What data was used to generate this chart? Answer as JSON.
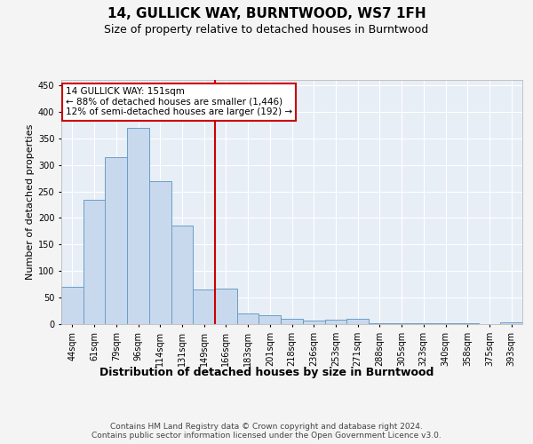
{
  "title": "14, GULLICK WAY, BURNTWOOD, WS7 1FH",
  "subtitle": "Size of property relative to detached houses in Burntwood",
  "xlabel": "Distribution of detached houses by size in Burntwood",
  "ylabel": "Number of detached properties",
  "categories": [
    "44sqm",
    "61sqm",
    "79sqm",
    "96sqm",
    "114sqm",
    "131sqm",
    "149sqm",
    "166sqm",
    "183sqm",
    "201sqm",
    "218sqm",
    "236sqm",
    "253sqm",
    "271sqm",
    "288sqm",
    "305sqm",
    "323sqm",
    "340sqm",
    "358sqm",
    "375sqm",
    "393sqm"
  ],
  "values": [
    70,
    235,
    315,
    370,
    270,
    185,
    65,
    67,
    20,
    17,
    10,
    6,
    8,
    10,
    2,
    2,
    2,
    2,
    1,
    0,
    3
  ],
  "bar_color": "#c9d9ed",
  "bar_edge_color": "#6a9ec5",
  "vline_x_index": 6.5,
  "vline_color": "#cc0000",
  "annotation_text": "14 GULLICK WAY: 151sqm\n← 88% of detached houses are smaller (1,446)\n12% of semi-detached houses are larger (192) →",
  "annotation_box_color": "#ffffff",
  "annotation_box_edge": "#cc0000",
  "ylim": [
    0,
    460
  ],
  "yticks": [
    0,
    50,
    100,
    150,
    200,
    250,
    300,
    350,
    400,
    450
  ],
  "footer": "Contains HM Land Registry data © Crown copyright and database right 2024.\nContains public sector information licensed under the Open Government Licence v3.0.",
  "fig_bg_color": "#f4f4f4",
  "bg_color": "#e8eef6",
  "grid_color": "#ffffff",
  "title_fontsize": 11,
  "subtitle_fontsize": 9,
  "xlabel_fontsize": 9,
  "ylabel_fontsize": 8,
  "tick_fontsize": 7,
  "footer_fontsize": 6.5,
  "annotation_fontsize": 7.5
}
